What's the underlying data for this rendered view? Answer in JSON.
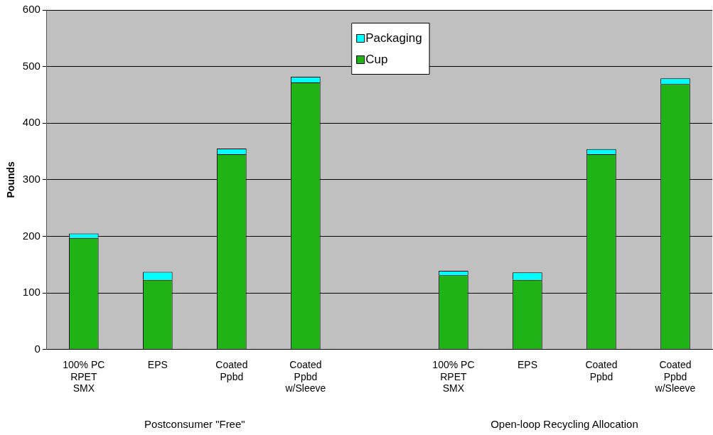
{
  "chart_data": {
    "type": "bar",
    "ylabel": "Pounds",
    "stacked": true,
    "categories": [
      "100% PC\nRPET\nSMX",
      "EPS",
      "Coated\nPpbd",
      "Coated\nPpbd\nw/Sleeve",
      null,
      "100% PC\nRPET\nSMX",
      "EPS",
      "Coated\nPpbd",
      "Coated\nPpbd\nw/Sleeve"
    ],
    "series": [
      {
        "name": "Cup",
        "color": "#1fb316",
        "values": [
          197,
          123,
          345,
          472,
          null,
          131,
          123,
          345,
          469
        ]
      },
      {
        "name": "Packaging",
        "color": "#00ffff",
        "values": [
          8,
          14,
          10,
          10,
          null,
          8,
          13,
          9,
          10
        ]
      }
    ],
    "ylim": [
      0,
      600
    ],
    "yticks": [
      0,
      100,
      200,
      300,
      400,
      500,
      600
    ],
    "grid": "y",
    "legend": "top",
    "annotations": [
      "Postconsumer \"Free\"",
      "Open-loop Recycling Allocation"
    ]
  }
}
